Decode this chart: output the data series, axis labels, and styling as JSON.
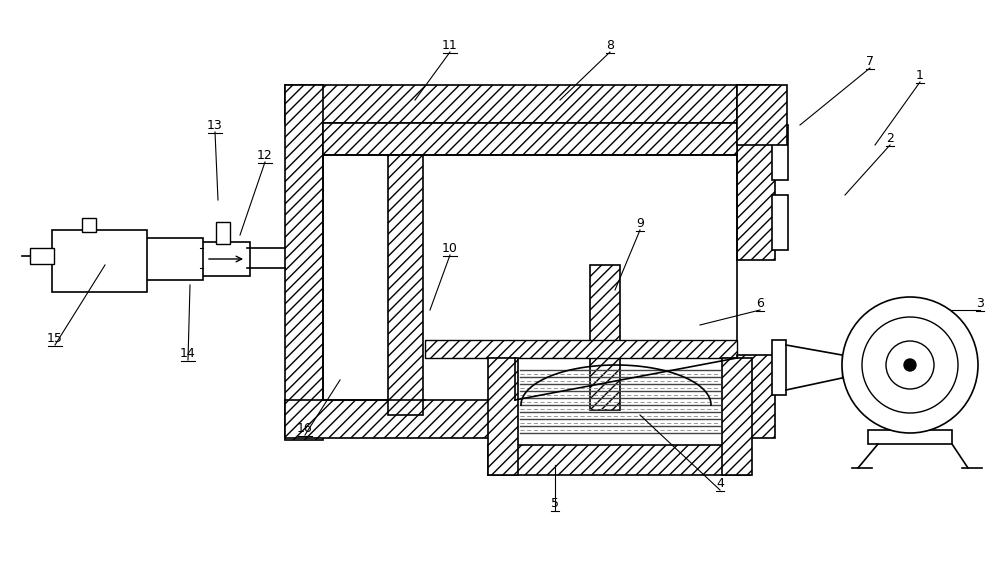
{
  "bg_color": "#ffffff",
  "line_color": "#000000",
  "fig_width": 10.0,
  "fig_height": 5.69,
  "lw": 1.2,
  "fontsize": 9,
  "hatch_density": "///",
  "labels": [
    [
      "1",
      920,
      82,
      875,
      145
    ],
    [
      "2",
      890,
      145,
      845,
      195
    ],
    [
      "3",
      980,
      310,
      910,
      310
    ],
    [
      "4",
      720,
      490,
      640,
      415
    ],
    [
      "5",
      555,
      510,
      555,
      465
    ],
    [
      "6",
      760,
      310,
      700,
      325
    ],
    [
      "7",
      870,
      68,
      800,
      125
    ],
    [
      "8",
      610,
      52,
      560,
      100
    ],
    [
      "9",
      640,
      230,
      615,
      290
    ],
    [
      "10",
      450,
      255,
      430,
      310
    ],
    [
      "11",
      450,
      52,
      415,
      100
    ],
    [
      "12",
      265,
      162,
      240,
      235
    ],
    [
      "13",
      215,
      132,
      218,
      200
    ],
    [
      "14",
      188,
      360,
      190,
      285
    ],
    [
      "15",
      55,
      345,
      105,
      265
    ],
    [
      "16",
      305,
      435,
      340,
      380
    ]
  ]
}
